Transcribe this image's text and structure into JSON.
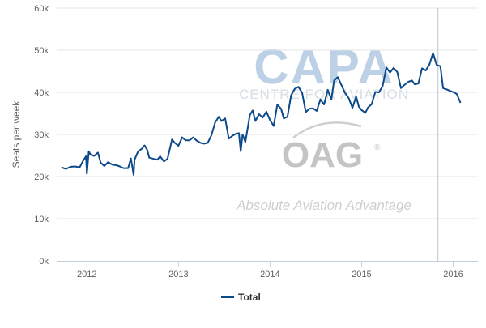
{
  "chart_data": {
    "type": "line",
    "title": "",
    "xlabel": "",
    "ylabel": "Seats per week",
    "x_ticks": [
      "2012",
      "2013",
      "2014",
      "2015",
      "2016"
    ],
    "y_ticks": [
      "0k",
      "10k",
      "20k",
      "30k",
      "40k",
      "50k",
      "60k"
    ],
    "ylim": [
      0,
      60000
    ],
    "xlim": [
      2011.67,
      2016.27
    ],
    "grid": "horizontal",
    "legend": "bottom-center",
    "marker_line_x": 2015.83,
    "series": [
      {
        "name": "Total",
        "color": "#0d4a8a",
        "points": [
          [
            2011.72,
            22200
          ],
          [
            2011.77,
            21800
          ],
          [
            2011.82,
            22300
          ],
          [
            2011.87,
            22400
          ],
          [
            2011.92,
            22200
          ],
          [
            2011.96,
            23800
          ],
          [
            2011.99,
            24800
          ],
          [
            2012.0,
            20700
          ],
          [
            2012.02,
            26000
          ],
          [
            2012.04,
            25200
          ],
          [
            2012.08,
            24900
          ],
          [
            2012.12,
            25700
          ],
          [
            2012.15,
            23300
          ],
          [
            2012.19,
            22500
          ],
          [
            2012.23,
            23400
          ],
          [
            2012.28,
            22800
          ],
          [
            2012.32,
            22700
          ],
          [
            2012.36,
            22400
          ],
          [
            2012.4,
            22000
          ],
          [
            2012.45,
            22000
          ],
          [
            2012.48,
            24300
          ],
          [
            2012.51,
            20400
          ],
          [
            2012.52,
            24000
          ],
          [
            2012.56,
            26000
          ],
          [
            2012.6,
            26600
          ],
          [
            2012.63,
            27400
          ],
          [
            2012.66,
            26300
          ],
          [
            2012.68,
            24500
          ],
          [
            2012.73,
            24200
          ],
          [
            2012.77,
            24000
          ],
          [
            2012.8,
            24800
          ],
          [
            2012.84,
            23600
          ],
          [
            2012.88,
            24200
          ],
          [
            2012.93,
            28800
          ],
          [
            2012.96,
            28000
          ],
          [
            2013.0,
            27300
          ],
          [
            2013.04,
            29300
          ],
          [
            2013.08,
            28600
          ],
          [
            2013.12,
            28600
          ],
          [
            2013.16,
            29300
          ],
          [
            2013.2,
            28500
          ],
          [
            2013.24,
            28000
          ],
          [
            2013.28,
            27800
          ],
          [
            2013.32,
            28000
          ],
          [
            2013.36,
            29800
          ],
          [
            2013.4,
            32800
          ],
          [
            2013.44,
            34200
          ],
          [
            2013.47,
            33200
          ],
          [
            2013.51,
            33800
          ],
          [
            2013.55,
            29000
          ],
          [
            2013.59,
            29700
          ],
          [
            2013.63,
            30200
          ],
          [
            2013.66,
            30300
          ],
          [
            2013.68,
            26000
          ],
          [
            2013.7,
            30000
          ],
          [
            2013.73,
            28200
          ],
          [
            2013.78,
            34600
          ],
          [
            2013.81,
            35700
          ],
          [
            2013.84,
            33200
          ],
          [
            2013.88,
            34800
          ],
          [
            2013.92,
            34000
          ],
          [
            2013.96,
            35400
          ],
          [
            2014.0,
            33400
          ],
          [
            2014.04,
            32000
          ],
          [
            2014.08,
            37100
          ],
          [
            2014.12,
            36100
          ],
          [
            2014.15,
            33800
          ],
          [
            2014.19,
            34200
          ],
          [
            2014.23,
            39300
          ],
          [
            2014.27,
            40800
          ],
          [
            2014.31,
            41300
          ],
          [
            2014.35,
            39900
          ],
          [
            2014.39,
            35300
          ],
          [
            2014.43,
            36100
          ],
          [
            2014.47,
            36200
          ],
          [
            2014.51,
            35600
          ],
          [
            2014.55,
            38300
          ],
          [
            2014.59,
            37100
          ],
          [
            2014.63,
            40600
          ],
          [
            2014.67,
            38300
          ],
          [
            2014.7,
            42800
          ],
          [
            2014.74,
            43600
          ],
          [
            2014.78,
            41700
          ],
          [
            2014.82,
            39800
          ],
          [
            2014.86,
            38600
          ],
          [
            2014.9,
            36300
          ],
          [
            2014.94,
            39000
          ],
          [
            2014.97,
            36600
          ],
          [
            2015.0,
            35800
          ],
          [
            2015.04,
            35100
          ],
          [
            2015.07,
            36400
          ],
          [
            2015.11,
            37200
          ],
          [
            2015.15,
            40100
          ],
          [
            2015.19,
            40000
          ],
          [
            2015.23,
            41500
          ],
          [
            2015.27,
            45900
          ],
          [
            2015.31,
            44700
          ],
          [
            2015.35,
            45800
          ],
          [
            2015.39,
            44800
          ],
          [
            2015.43,
            41000
          ],
          [
            2015.47,
            41800
          ],
          [
            2015.51,
            42500
          ],
          [
            2015.55,
            42800
          ],
          [
            2015.58,
            41900
          ],
          [
            2015.62,
            42100
          ],
          [
            2015.66,
            45700
          ],
          [
            2015.7,
            45200
          ],
          [
            2015.74,
            46600
          ],
          [
            2015.78,
            49300
          ],
          [
            2015.82,
            46500
          ],
          [
            2015.86,
            46200
          ],
          [
            2015.89,
            41000
          ],
          [
            2015.93,
            40700
          ],
          [
            2015.97,
            40300
          ],
          [
            2016.01,
            40000
          ],
          [
            2016.04,
            39600
          ],
          [
            2016.08,
            37500
          ]
        ]
      }
    ]
  },
  "watermark": {
    "logo_main": "CAPA",
    "logo_sub": "CENTRE FOR AVIATION",
    "oag": "OAG",
    "registered": "®",
    "tagline": "Absolute Aviation Advantage"
  }
}
